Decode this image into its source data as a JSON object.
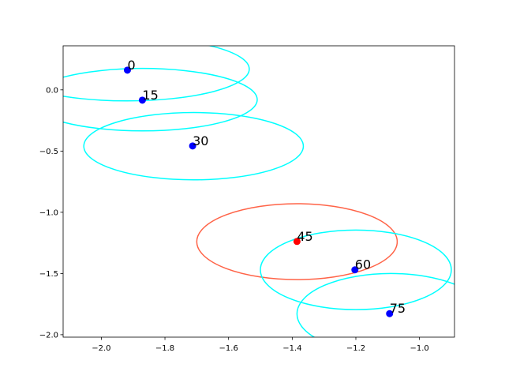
{
  "chart_data": {
    "type": "scatter",
    "title": "",
    "xlabel": "",
    "ylabel": "",
    "xlim": [
      -2.12,
      -0.89
    ],
    "ylim": [
      -2.02,
      0.36
    ],
    "grid": false,
    "xticks": [
      -2.0,
      -1.8,
      -1.6,
      -1.4,
      -1.2,
      -1.0
    ],
    "xtick_labels": [
      "−2.0",
      "−1.8",
      "−1.6",
      "−1.4",
      "−1.2",
      "−1.0"
    ],
    "yticks": [
      0.0,
      -0.5,
      -1.0,
      -1.5,
      -2.0
    ],
    "ytick_labels": [
      "0.0",
      "−0.5",
      "−1.0",
      "−1.5",
      "−2.0"
    ],
    "points": [
      {
        "label": "0",
        "x": -1.918,
        "y": 0.161,
        "color": "#0000ff",
        "ellipse": {
          "cx": -1.92,
          "cy": 0.17,
          "rx": 0.385,
          "ry": 0.26,
          "color": "#00ffff"
        }
      },
      {
        "label": "15",
        "x": -1.871,
        "y": -0.084,
        "color": "#0000ff",
        "ellipse": {
          "cx": -1.87,
          "cy": -0.08,
          "rx": 0.36,
          "ry": 0.255,
          "color": "#00ffff"
        }
      },
      {
        "label": "30",
        "x": -1.713,
        "y": -0.458,
        "color": "#0000ff",
        "ellipse": {
          "cx": -1.71,
          "cy": -0.46,
          "rx": 0.345,
          "ry": 0.275,
          "color": "#00ffff"
        }
      },
      {
        "label": "45",
        "x": -1.385,
        "y": -1.238,
        "color": "#ff0000",
        "ellipse": {
          "cx": -1.385,
          "cy": -1.24,
          "rx": 0.315,
          "ry": 0.31,
          "color": "#ff6347"
        }
      },
      {
        "label": "60",
        "x": -1.203,
        "y": -1.47,
        "color": "#0000ff",
        "ellipse": {
          "cx": -1.2,
          "cy": -1.47,
          "rx": 0.3,
          "ry": 0.325,
          "color": "#00ffff"
        }
      },
      {
        "label": "75",
        "x": -1.094,
        "y": -1.828,
        "color": "#0000ff",
        "ellipse": {
          "cx": -1.09,
          "cy": -1.83,
          "rx": 0.295,
          "ry": 0.33,
          "color": "#00ffff"
        }
      }
    ],
    "axes_color": "#000000",
    "background": "#ffffff"
  }
}
